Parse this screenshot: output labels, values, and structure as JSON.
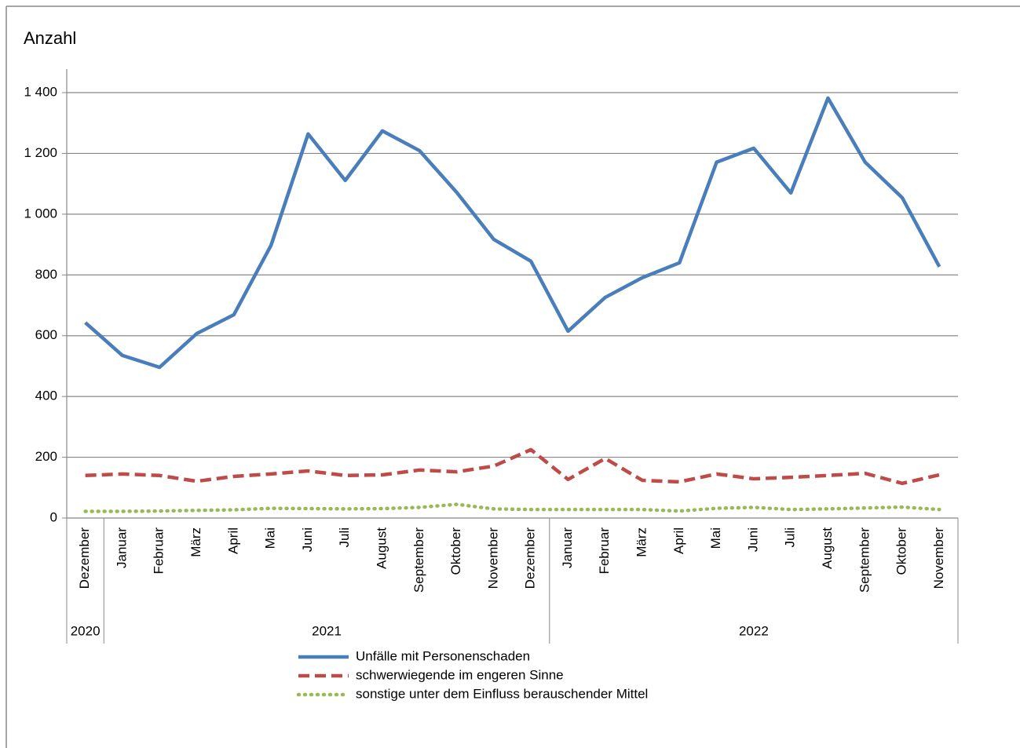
{
  "chart_data": {
    "type": "line",
    "y_label": "Anzahl",
    "categories": [
      "Dezember",
      "Januar",
      "Februar",
      "März",
      "April",
      "Mai",
      "Juni",
      "Juli",
      "August",
      "September",
      "Oktober",
      "November",
      "Dezember",
      "Januar",
      "Februar",
      "März",
      "April",
      "Mai",
      "Juni",
      "Juli",
      "August",
      "September",
      "Oktober",
      "November"
    ],
    "category_groups": [
      {
        "label": "2020",
        "count": 1
      },
      {
        "label": "2021",
        "count": 12
      },
      {
        "label": "2022",
        "count": 11
      }
    ],
    "series": [
      {
        "name": "Unfälle mit Personenschaden",
        "color": "#4a7ebb",
        "dash": "solid",
        "values": [
          643,
          535,
          496,
          607,
          669,
          897,
          1264,
          1111,
          1274,
          1209,
          1072,
          917,
          845,
          615,
          726,
          791,
          840,
          1171,
          1217,
          1070,
          1382,
          1171,
          1054,
          827
        ]
      },
      {
        "name": "schwerwiegende im engeren Sinne",
        "color": "#be4b48",
        "dash": "dashed",
        "values": [
          140,
          145,
          140,
          121,
          137,
          145,
          155,
          140,
          142,
          158,
          152,
          171,
          225,
          127,
          196,
          124,
          119,
          145,
          129,
          134,
          140,
          147,
          114,
          142
        ]
      },
      {
        "name": "sonstige unter dem Einfluss berauschender Mittel",
        "color": "#98b954",
        "dash": "dotted",
        "values": [
          22,
          22,
          23,
          25,
          27,
          32,
          31,
          30,
          31,
          35,
          45,
          30,
          28,
          28,
          28,
          28,
          23,
          32,
          35,
          28,
          30,
          33,
          36,
          28
        ]
      }
    ],
    "ylim": [
      0,
      1400
    ],
    "yticks": [
      0,
      200,
      400,
      600,
      800,
      {
        "value": 1000,
        "label": "1 000"
      },
      {
        "value": 1200,
        "label": "1 200"
      },
      {
        "value": 1400,
        "label": "1 400"
      }
    ],
    "grid": true,
    "legend": "bottom"
  }
}
